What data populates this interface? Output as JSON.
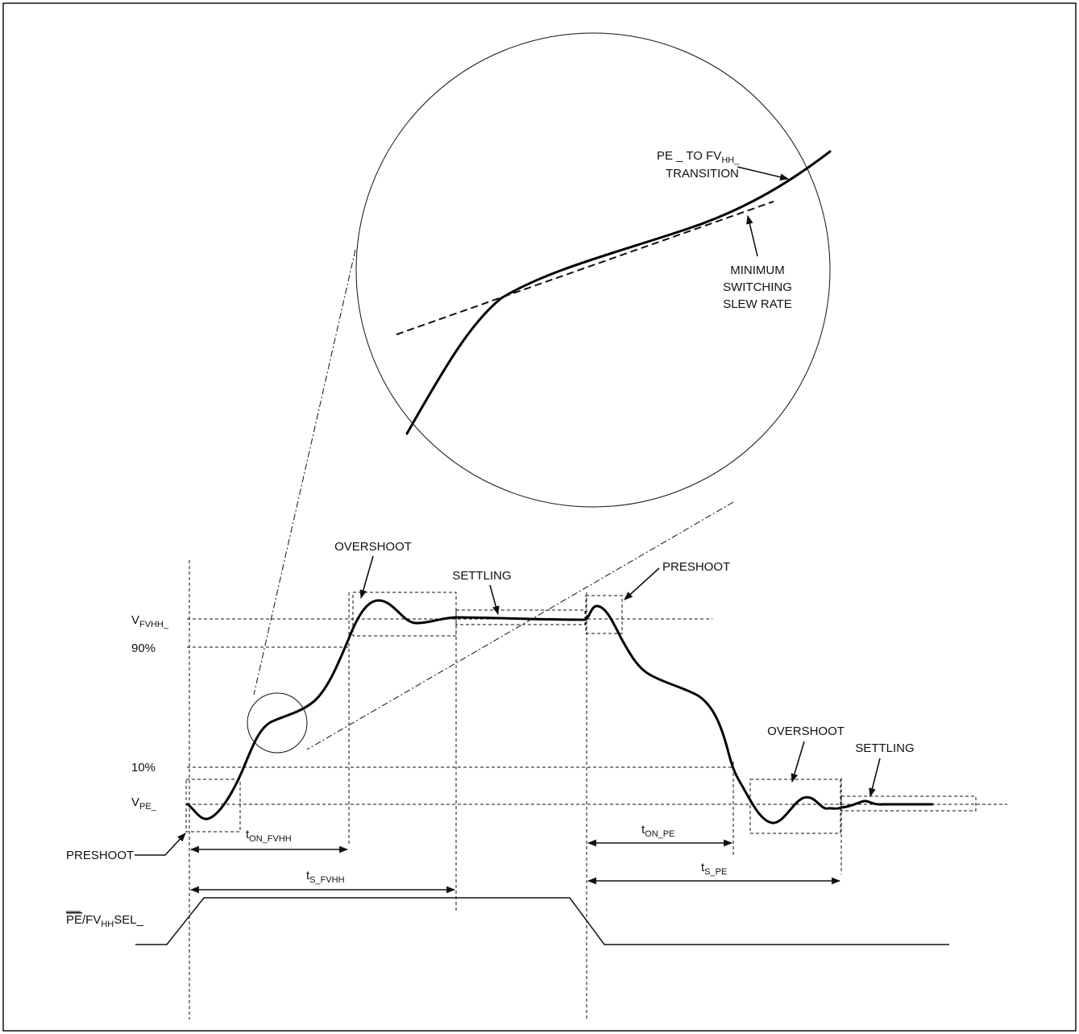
{
  "labels": {
    "zoom_callout_line1": "PE _ TO FV",
    "zoom_callout_line1_sub": "HH_",
    "zoom_callout_line2": "TRANSITION",
    "min_slew_line1": "MINIMUM",
    "min_slew_line2": "SWITCHING",
    "min_slew_line3": "SLEW RATE",
    "overshoot_top": "OVERSHOOT",
    "settling_top": "SETTLING",
    "preshoot_top": "PRESHOOT",
    "vfvhh_main": "V",
    "vfvhh_sub": "FVHH_",
    "pct90": "90%",
    "pct10": "10%",
    "vpe_main": "V",
    "vpe_sub": "PE_",
    "preshoot_bottom": "PRESHOOT",
    "overshoot_bottom": "OVERSHOOT",
    "settling_bottom": "SETTLING",
    "t_on_fvhh_main": "t",
    "t_on_fvhh_sub": "ON_FVHH",
    "t_s_fvhh_main": "t",
    "t_s_fvhh_sub": "S_FVHH",
    "t_on_pe_main": "t",
    "t_on_pe_sub": "ON_PE",
    "t_s_pe_main": "t",
    "t_s_pe_sub": "S_PE",
    "sel_pe": "PE",
    "sel_mid": "/FV",
    "sel_sub": "HH",
    "sel_end": "SEL_"
  }
}
